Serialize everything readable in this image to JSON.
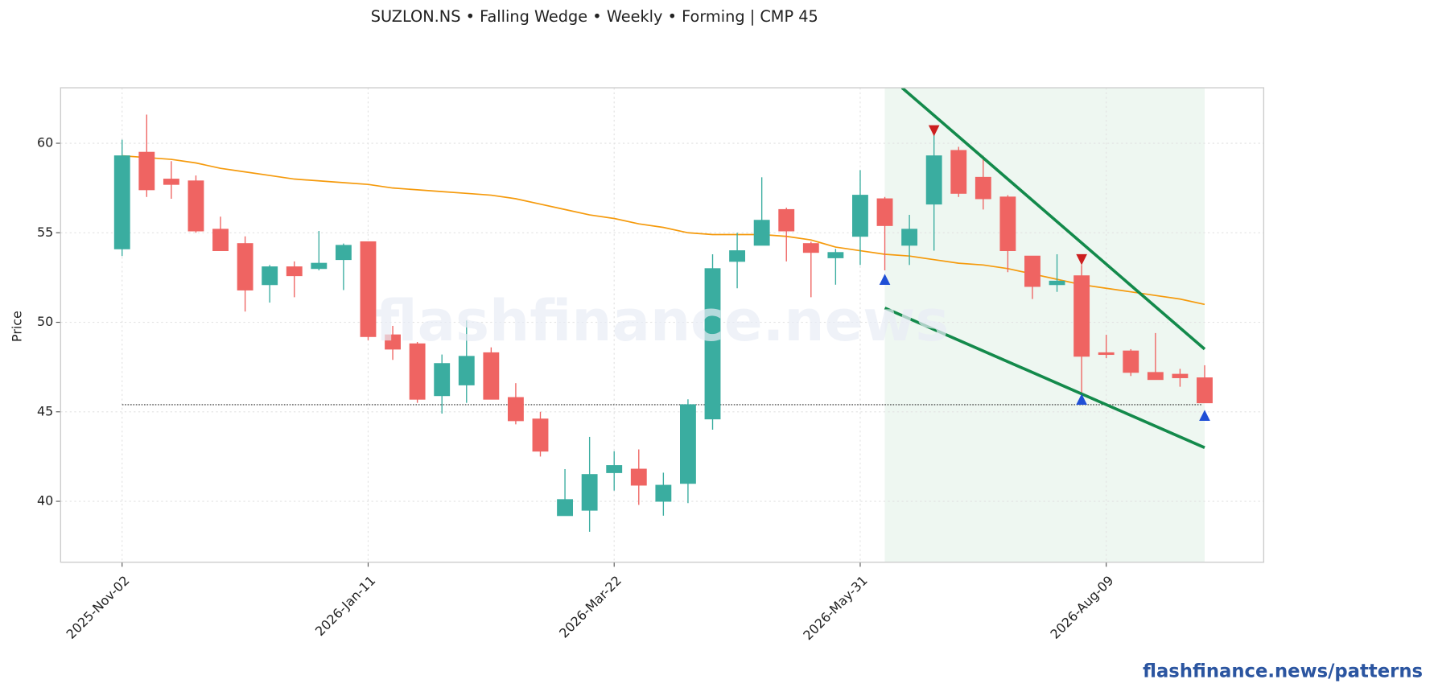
{
  "chart_data": {
    "type": "candlestick",
    "title": "SUZLON.NS  •  Falling Wedge  •  Weekly  •  Forming  |  CMP 45",
    "ylabel": "Price",
    "watermark": "flashfinance.news",
    "footer": "flashfinance.news/patterns",
    "xlim": [
      -2.5,
      46.4
    ],
    "ylim": [
      36.6,
      63.1
    ],
    "xticks": [
      {
        "value": 0,
        "label": "2025-Nov-02"
      },
      {
        "value": 10,
        "label": "2026-Jan-11"
      },
      {
        "value": 20,
        "label": "2026-Mar-22"
      },
      {
        "value": 30,
        "label": "2026-May-31"
      },
      {
        "value": 40,
        "label": "2026-Aug-09"
      }
    ],
    "yticks": [
      40,
      45,
      50,
      55,
      60
    ],
    "grid": true,
    "up_color": "#3aada0",
    "down_color": "#ef6462",
    "x": [
      0,
      1,
      2,
      3,
      4,
      5,
      6,
      7,
      8,
      9,
      10,
      11,
      12,
      13,
      14,
      15,
      16,
      17,
      18,
      19,
      20,
      21,
      22,
      23,
      24,
      25,
      26,
      27,
      28,
      29,
      30,
      31,
      32,
      33,
      34,
      35,
      36,
      37,
      38,
      39,
      40,
      41,
      42,
      43,
      44
    ],
    "open": [
      54.1,
      59.5,
      58.0,
      57.9,
      55.2,
      54.4,
      52.1,
      53.1,
      53.0,
      53.5,
      54.5,
      49.3,
      48.8,
      45.9,
      46.5,
      48.3,
      45.8,
      44.6,
      39.2,
      39.5,
      41.6,
      41.8,
      40.0,
      41.0,
      44.6,
      53.4,
      54.3,
      56.3,
      54.4,
      53.6,
      54.8,
      56.9,
      54.3,
      56.6,
      59.6,
      58.1,
      57.0,
      53.7,
      52.1,
      52.6,
      48.3,
      48.4,
      47.2,
      47.1,
      46.9
    ],
    "high": [
      60.2,
      61.6,
      59.0,
      58.2,
      55.9,
      54.8,
      53.2,
      53.4,
      55.1,
      54.4,
      54.5,
      49.8,
      48.9,
      48.2,
      50.1,
      48.6,
      46.6,
      45.0,
      41.8,
      43.6,
      42.8,
      42.9,
      41.6,
      45.7,
      53.8,
      55.0,
      58.1,
      56.4,
      54.5,
      54.1,
      58.5,
      57.0,
      56.0,
      60.6,
      59.8,
      59.3,
      57.1,
      53.7,
      53.8,
      53.2,
      49.3,
      48.5,
      49.4,
      47.4,
      47.6
    ],
    "low": [
      53.7,
      57.0,
      56.9,
      55.0,
      54.0,
      50.6,
      51.1,
      51.4,
      52.9,
      51.8,
      49.0,
      47.9,
      45.5,
      44.9,
      45.5,
      45.7,
      44.3,
      42.5,
      39.2,
      38.3,
      40.6,
      39.8,
      39.2,
      39.9,
      44.0,
      51.9,
      54.3,
      53.4,
      51.4,
      52.1,
      53.2,
      52.9,
      53.2,
      54.0,
      57.0,
      56.3,
      52.8,
      51.3,
      51.7,
      45.7,
      48.0,
      47.0,
      46.8,
      46.4,
      45.5
    ],
    "close": [
      59.3,
      57.4,
      57.7,
      55.1,
      54.0,
      51.8,
      53.1,
      52.6,
      53.3,
      54.3,
      49.2,
      48.5,
      45.7,
      47.7,
      48.1,
      45.7,
      44.5,
      42.8,
      40.1,
      41.5,
      42.0,
      40.9,
      40.9,
      45.4,
      53.0,
      54.0,
      55.7,
      55.1,
      53.9,
      53.9,
      57.1,
      55.4,
      55.2,
      59.3,
      57.2,
      56.9,
      54.0,
      52.0,
      52.3,
      48.1,
      48.2,
      47.2,
      46.8,
      46.9,
      45.5
    ],
    "moving_average": {
      "color": "#f59a0c",
      "values": [
        59.3,
        59.2,
        59.1,
        58.9,
        58.6,
        58.4,
        58.2,
        58.0,
        57.9,
        57.8,
        57.7,
        57.5,
        57.4,
        57.3,
        57.2,
        57.1,
        56.9,
        56.6,
        56.3,
        56.0,
        55.8,
        55.5,
        55.3,
        55.0,
        54.9,
        54.9,
        54.9,
        54.8,
        54.6,
        54.2,
        54.0,
        53.8,
        53.7,
        53.5,
        53.3,
        53.2,
        53.0,
        52.7,
        52.4,
        52.1,
        51.9,
        51.7,
        51.5,
        51.3,
        51.0
      ]
    },
    "reference_line": 45.4,
    "pattern_zone": {
      "color": "#eef7f1",
      "x": [
        31,
        44
      ]
    },
    "trendlines": [
      {
        "color": "#138a4b",
        "x": [
          31.7,
          44
        ],
        "y": [
          63.1,
          48.5
        ]
      },
      {
        "color": "#138a4b",
        "x": [
          31,
          44
        ],
        "y": [
          50.8,
          43.0
        ]
      }
    ],
    "markers": [
      {
        "shape": "down",
        "color": "#cc1f1f",
        "x": [
          33,
          39
        ],
        "y": [
          60.7,
          53.5
        ]
      },
      {
        "shape": "up",
        "color": "#1f4fd6",
        "x": [
          31,
          39,
          44
        ],
        "y": [
          52.4,
          45.7,
          44.8
        ]
      }
    ]
  }
}
